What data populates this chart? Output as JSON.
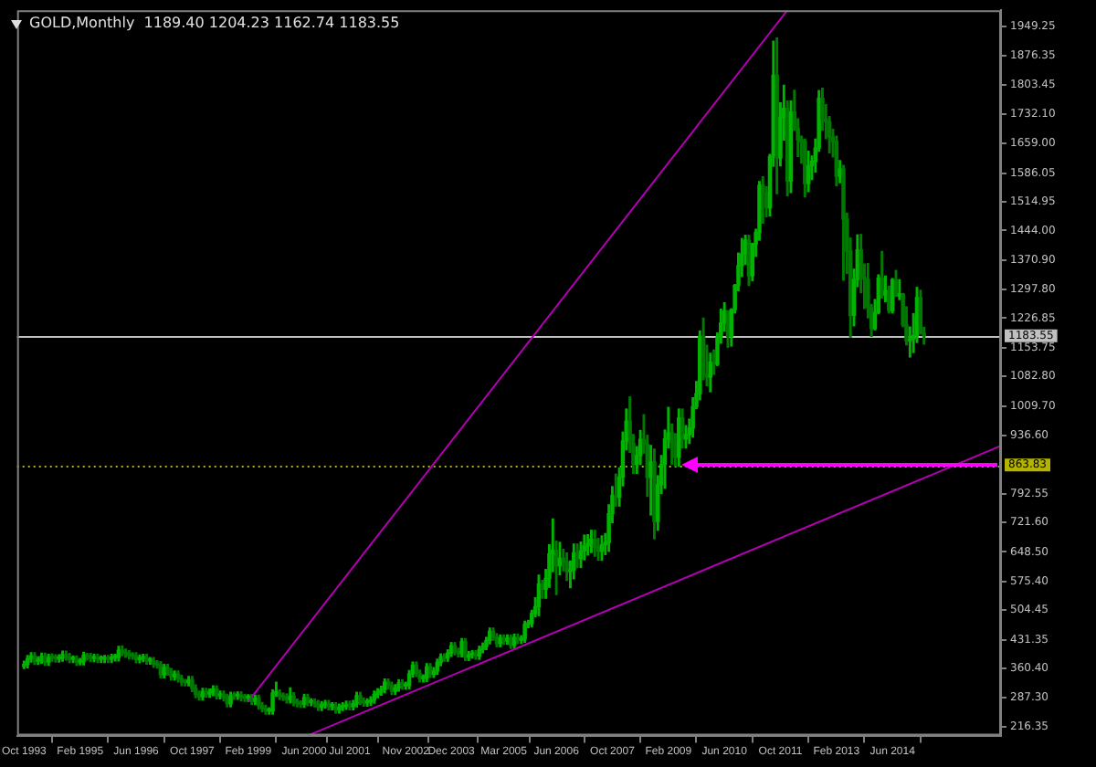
{
  "chart_data": {
    "type": "candlestick",
    "title": "GOLD,Monthly  1189.40 1204.23 1162.74 1183.55",
    "colors": [
      "#00b400",
      "#00b400",
      "#00b400",
      "#007a00",
      "#00b400",
      "#00b400",
      "#007a00",
      "#00b400",
      "#007a00",
      "#007a00",
      "#00b400",
      "#00b400",
      "#007a00",
      "#007a00",
      "#00b400",
      "#007a00",
      "#00b400",
      "#00b400",
      "#007a00",
      "#007a00",
      "#00b400",
      "#007a00",
      "#00b400",
      "#00b400",
      "#007a00",
      "#00b400",
      "#00b400",
      "#00b400",
      "#007a00",
      "#007a00",
      "#007a00",
      "#007a00",
      "#007a00",
      "#00b400",
      "#00b400",
      "#007a00",
      "#00b400",
      "#007a00",
      "#007a00",
      "#007a00",
      "#00b400",
      "#007a00",
      "#007a00",
      "#00b400",
      "#007a00",
      "#007a00",
      "#007a00",
      "#00b400",
      "#007a00",
      "#007a00",
      "#007a00",
      "#00b400",
      "#007a00",
      "#00b400",
      "#00b400",
      "#007a00",
      "#00b400",
      "#007a00",
      "#007a00",
      "#00b400",
      "#007a00",
      "#00b400",
      "#007a00",
      "#007a00",
      "#00b400",
      "#007a00",
      "#00b400",
      "#007a00",
      "#007a00",
      "#007a00",
      "#00b400",
      "#00b400",
      "#00b400",
      "#007a00",
      "#007a00",
      "#007a00",
      "#00b400",
      "#007a00",
      "#007a00",
      "#007a00",
      "#00b400",
      "#007a00",
      "#00b400",
      "#007a00",
      "#007a00",
      "#00b400",
      "#00b400",
      "#007a00",
      "#00b400",
      "#007a00",
      "#00b400",
      "#00b400",
      "#00b400",
      "#007a00",
      "#00b400",
      "#00b400",
      "#007a00",
      "#007a00",
      "#00b400",
      "#00b400",
      "#00b400",
      "#00b400",
      "#00b400",
      "#00b400",
      "#007a00",
      "#007a00",
      "#00b400",
      "#00b400",
      "#007a00",
      "#00b400",
      "#00b400",
      "#00b400",
      "#007a00",
      "#007a00",
      "#00b400",
      "#00b400",
      "#007a00",
      "#00b400",
      "#00b400",
      "#00b400",
      "#007a00",
      "#00b400",
      "#00b400",
      "#007a00",
      "#007a00",
      "#00b400",
      "#007a00",
      "#00b400",
      "#00b400",
      "#007a00",
      "#00b400",
      "#00b400",
      "#00b400",
      "#00b400",
      "#007a00",
      "#007a00",
      "#00b400",
      "#007a00",
      "#00b400",
      "#007a00",
      "#00b400",
      "#007a00",
      "#00b400",
      "#00b400",
      "#00b400",
      "#00b400",
      "#00b400",
      "#00b400",
      "#007a00",
      "#00b400",
      "#00b400",
      "#00b400",
      "#007a00",
      "#00b400",
      "#007a00",
      "#007a00",
      "#00b400",
      "#00b400",
      "#007a00",
      "#00b400",
      "#00b400",
      "#00b400",
      "#00b400",
      "#007a00",
      "#007a00",
      "#00b400",
      "#00b400",
      "#00b400",
      "#00b400",
      "#007a00",
      "#00b400",
      "#00b400",
      "#00b400",
      "#007a00",
      "#007a00",
      "#00b400",
      "#00b400",
      "#007a00",
      "#007a00",
      "#00b400",
      "#007a00",
      "#00b400",
      "#00b400",
      "#00b400",
      "#00b400",
      "#007a00",
      "#007a00",
      "#00b400",
      "#007a00",
      "#00b400",
      "#00b400",
      "#00b400",
      "#00b400",
      "#00b400",
      "#007a00",
      "#007a00",
      "#00b400",
      "#007a00",
      "#00b400",
      "#00b400",
      "#00b400",
      "#007a00",
      "#00b400",
      "#00b400",
      "#00b400",
      "#00b400",
      "#00b400",
      "#007a00",
      "#00b400",
      "#00b400",
      "#00b400",
      "#007a00",
      "#007a00",
      "#00b400",
      "#00b400",
      "#007a00",
      "#00b400",
      "#00b400",
      "#007a00",
      "#00b400",
      "#007a00",
      "#007a00",
      "#007a00",
      "#007a00",
      "#00b400",
      "#00b400",
      "#00b400",
      "#00b400",
      "#007a00",
      "#007a00",
      "#007a00",
      "#007a00",
      "#007a00",
      "#00b400",
      "#007a00",
      "#007a00",
      "#007a00",
      "#00b400",
      "#00b400",
      "#007a00",
      "#007a00",
      "#007a00",
      "#007a00",
      "#00b400",
      "#00b400",
      "#007a00",
      "#00b400",
      "#007a00",
      "#00b400",
      "#007a00",
      "#00b400",
      "#007a00",
      "#007a00",
      "#00b400",
      "#00b400",
      "#00b400",
      "#007a00",
      "#007a00"
    ],
    "x": [
      "1993-10",
      "1993-11",
      "1993-12",
      "1994-01",
      "1994-02",
      "1994-03",
      "1994-04",
      "1994-05",
      "1994-06",
      "1994-07",
      "1994-08",
      "1994-09",
      "1994-10",
      "1994-11",
      "1994-12",
      "1995-01",
      "1995-02",
      "1995-03",
      "1995-04",
      "1995-05",
      "1995-06",
      "1995-07",
      "1995-08",
      "1995-09",
      "1995-10",
      "1995-11",
      "1995-12",
      "1996-01",
      "1996-02",
      "1996-03",
      "1996-04",
      "1996-05",
      "1996-06",
      "1996-07",
      "1996-08",
      "1996-09",
      "1996-10",
      "1996-11",
      "1996-12",
      "1997-01",
      "1997-02",
      "1997-03",
      "1997-04",
      "1997-05",
      "1997-06",
      "1997-07",
      "1997-08",
      "1997-09",
      "1997-10",
      "1997-11",
      "1997-12",
      "1998-01",
      "1998-02",
      "1998-03",
      "1998-04",
      "1998-05",
      "1998-06",
      "1998-07",
      "1998-08",
      "1998-09",
      "1998-10",
      "1998-11",
      "1998-12",
      "1999-01",
      "1999-02",
      "1999-03",
      "1999-04",
      "1999-05",
      "1999-06",
      "1999-07",
      "1999-08",
      "1999-09",
      "1999-10",
      "1999-11",
      "1999-12",
      "2000-01",
      "2000-02",
      "2000-03",
      "2000-04",
      "2000-05",
      "2000-06",
      "2000-07",
      "2000-08",
      "2000-09",
      "2000-10",
      "2000-11",
      "2000-12",
      "2001-01",
      "2001-02",
      "2001-03",
      "2001-04",
      "2001-05",
      "2001-06",
      "2001-07",
      "2001-08",
      "2001-09",
      "2001-10",
      "2001-11",
      "2001-12",
      "2002-01",
      "2002-02",
      "2002-03",
      "2002-04",
      "2002-05",
      "2002-06",
      "2002-07",
      "2002-08",
      "2002-09",
      "2002-10",
      "2002-11",
      "2002-12",
      "2003-01",
      "2003-02",
      "2003-03",
      "2003-04",
      "2003-05",
      "2003-06",
      "2003-07",
      "2003-08",
      "2003-09",
      "2003-10",
      "2003-11",
      "2003-12",
      "2004-01",
      "2004-02",
      "2004-03",
      "2004-04",
      "2004-05",
      "2004-06",
      "2004-07",
      "2004-08",
      "2004-09",
      "2004-10",
      "2004-11",
      "2004-12",
      "2005-01",
      "2005-02",
      "2005-03",
      "2005-04",
      "2005-05",
      "2005-06",
      "2005-07",
      "2005-08",
      "2005-09",
      "2005-10",
      "2005-11",
      "2005-12",
      "2006-01",
      "2006-02",
      "2006-03",
      "2006-04",
      "2006-05",
      "2006-06",
      "2006-07",
      "2006-08",
      "2006-09",
      "2006-10",
      "2006-11",
      "2006-12",
      "2007-01",
      "2007-02",
      "2007-03",
      "2007-04",
      "2007-05",
      "2007-06",
      "2007-07",
      "2007-08",
      "2007-09",
      "2007-10",
      "2007-11",
      "2007-12",
      "2008-01",
      "2008-02",
      "2008-03",
      "2008-04",
      "2008-05",
      "2008-06",
      "2008-07",
      "2008-08",
      "2008-09",
      "2008-10",
      "2008-11",
      "2008-12",
      "2009-01",
      "2009-02",
      "2009-03",
      "2009-04",
      "2009-05",
      "2009-06",
      "2009-07",
      "2009-08",
      "2009-09",
      "2009-10",
      "2009-11",
      "2009-12",
      "2010-01",
      "2010-02",
      "2010-03",
      "2010-04",
      "2010-05",
      "2010-06",
      "2010-07",
      "2010-08",
      "2010-09",
      "2010-10",
      "2010-11",
      "2010-12",
      "2011-01",
      "2011-02",
      "2011-03",
      "2011-04",
      "2011-05",
      "2011-06",
      "2011-07",
      "2011-08",
      "2011-09",
      "2011-10",
      "2011-11",
      "2011-12",
      "2012-01",
      "2012-02",
      "2012-03",
      "2012-04",
      "2012-05",
      "2012-06",
      "2012-07",
      "2012-08",
      "2012-09",
      "2012-10",
      "2012-11",
      "2012-12",
      "2013-01",
      "2013-02",
      "2013-03",
      "2013-04",
      "2013-05",
      "2013-06",
      "2013-07",
      "2013-08",
      "2013-09",
      "2013-10",
      "2013-11",
      "2013-12",
      "2014-01",
      "2014-02",
      "2014-03",
      "2014-04",
      "2014-05",
      "2014-06",
      "2014-07",
      "2014-08",
      "2014-09",
      "2014-10",
      "2014-11",
      "2014-12",
      "2015-01",
      "2015-02",
      "2015-03"
    ],
    "ohlc": [
      [
        365,
        378,
        360,
        370
      ],
      [
        370,
        392,
        362,
        384
      ],
      [
        384,
        399,
        376,
        391
      ],
      [
        391,
        399,
        370,
        378
      ],
      [
        378,
        389,
        370,
        381
      ],
      [
        381,
        398,
        373,
        390
      ],
      [
        390,
        398,
        368,
        376
      ],
      [
        376,
        395,
        368,
        387
      ],
      [
        387,
        396,
        378,
        386
      ],
      [
        386,
        394,
        376,
        384
      ],
      [
        384,
        394,
        376,
        386
      ],
      [
        386,
        403,
        378,
        395
      ],
      [
        395,
        403,
        381,
        389
      ],
      [
        389,
        397,
        375,
        383
      ],
      [
        383,
        391,
        375,
        383
      ],
      [
        383,
        391,
        368,
        376
      ],
      [
        376,
        385,
        369,
        377
      ],
      [
        377,
        400,
        369,
        392
      ],
      [
        392,
        397,
        381,
        389
      ],
      [
        389,
        397,
        377,
        385
      ],
      [
        385,
        395,
        377,
        387
      ],
      [
        387,
        395,
        375,
        383
      ],
      [
        383,
        391,
        375,
        383
      ],
      [
        383,
        392,
        375,
        384
      ],
      [
        384,
        392,
        375,
        383
      ],
      [
        383,
        395,
        375,
        387
      ],
      [
        387,
        395,
        379,
        387
      ],
      [
        387,
        415,
        379,
        405
      ],
      [
        405,
        416,
        392,
        400
      ],
      [
        400,
        408,
        388,
        396
      ],
      [
        396,
        404,
        384,
        392
      ],
      [
        392,
        399,
        383,
        391
      ],
      [
        391,
        399,
        374,
        382
      ],
      [
        382,
        393,
        374,
        385
      ],
      [
        385,
        395,
        377,
        387
      ],
      [
        387,
        395,
        371,
        379
      ],
      [
        379,
        387,
        371,
        379
      ],
      [
        379,
        387,
        363,
        371
      ],
      [
        371,
        379,
        361,
        369
      ],
      [
        369,
        377,
        337,
        345
      ],
      [
        345,
        370,
        337,
        362
      ],
      [
        362,
        370,
        344,
        352
      ],
      [
        352,
        360,
        332,
        340
      ],
      [
        340,
        354,
        332,
        346
      ],
      [
        346,
        354,
        327,
        335
      ],
      [
        335,
        343,
        318,
        326
      ],
      [
        326,
        333,
        317,
        325
      ],
      [
        325,
        340,
        317,
        332
      ],
      [
        332,
        340,
        303,
        311
      ],
      [
        311,
        319,
        288,
        296
      ],
      [
        296,
        304,
        282,
        290
      ],
      [
        290,
        311,
        282,
        303
      ],
      [
        303,
        311,
        289,
        297
      ],
      [
        297,
        309,
        289,
        301
      ],
      [
        301,
        317,
        293,
        309
      ],
      [
        309,
        317,
        285,
        293
      ],
      [
        293,
        304,
        285,
        296
      ],
      [
        296,
        304,
        280,
        288
      ],
      [
        288,
        296,
        265,
        273
      ],
      [
        273,
        301,
        265,
        293
      ],
      [
        293,
        301,
        284,
        292
      ],
      [
        292,
        302,
        284,
        294
      ],
      [
        294,
        302,
        280,
        288
      ],
      [
        288,
        296,
        279,
        287
      ],
      [
        287,
        295,
        279,
        287
      ],
      [
        287,
        295,
        271,
        279
      ],
      [
        279,
        294,
        271,
        286
      ],
      [
        286,
        294,
        260,
        268
      ],
      [
        268,
        276,
        253,
        261
      ],
      [
        261,
        269,
        247,
        255
      ],
      [
        255,
        263,
        247,
        255
      ],
      [
        255,
        307,
        247,
        299
      ],
      [
        299,
        326,
        291,
        299
      ],
      [
        299,
        307,
        283,
        291
      ],
      [
        291,
        299,
        281,
        289
      ],
      [
        289,
        297,
        275,
        283
      ],
      [
        283,
        312,
        275,
        292
      ],
      [
        292,
        300,
        268,
        276
      ],
      [
        276,
        284,
        265,
        273
      ],
      [
        273,
        280,
        264,
        272
      ],
      [
        272,
        296,
        264,
        288
      ],
      [
        288,
        296,
        268,
        276
      ],
      [
        276,
        285,
        268,
        277
      ],
      [
        277,
        285,
        265,
        273
      ],
      [
        273,
        281,
        256,
        264
      ],
      [
        264,
        278,
        256,
        270
      ],
      [
        270,
        281,
        262,
        273
      ],
      [
        273,
        281,
        258,
        266
      ],
      [
        266,
        275,
        258,
        267
      ],
      [
        267,
        275,
        250,
        258
      ],
      [
        258,
        272,
        250,
        264
      ],
      [
        264,
        275,
        256,
        267
      ],
      [
        267,
        279,
        259,
        271
      ],
      [
        271,
        279,
        258,
        266
      ],
      [
        266,
        281,
        258,
        273
      ],
      [
        273,
        301,
        265,
        293
      ],
      [
        293,
        301,
        271,
        279
      ],
      [
        279,
        287,
        267,
        275
      ],
      [
        275,
        285,
        267,
        277
      ],
      [
        277,
        290,
        269,
        282
      ],
      [
        282,
        304,
        274,
        296
      ],
      [
        296,
        310,
        288,
        302
      ],
      [
        302,
        316,
        294,
        308
      ],
      [
        308,
        334,
        300,
        326
      ],
      [
        326,
        334,
        310,
        318
      ],
      [
        318,
        326,
        296,
        304
      ],
      [
        304,
        320,
        296,
        312
      ],
      [
        312,
        332,
        304,
        324
      ],
      [
        324,
        332,
        309,
        317
      ],
      [
        317,
        326,
        309,
        318
      ],
      [
        318,
        355,
        310,
        347
      ],
      [
        347,
        376,
        339,
        368
      ],
      [
        368,
        376,
        340,
        348
      ],
      [
        348,
        356,
        327,
        335
      ],
      [
        335,
        344,
        327,
        336
      ],
      [
        336,
        372,
        328,
        364
      ],
      [
        364,
        372,
        338,
        346
      ],
      [
        346,
        362,
        338,
        354
      ],
      [
        354,
        383,
        346,
        375
      ],
      [
        375,
        396,
        367,
        388
      ],
      [
        388,
        396,
        378,
        386
      ],
      [
        386,
        406,
        378,
        398
      ],
      [
        398,
        424,
        390,
        416
      ],
      [
        416,
        424,
        394,
        402
      ],
      [
        402,
        410,
        389,
        397
      ],
      [
        397,
        434,
        389,
        426
      ],
      [
        426,
        434,
        380,
        388
      ],
      [
        388,
        402,
        380,
        394
      ],
      [
        394,
        404,
        386,
        396
      ],
      [
        396,
        404,
        383,
        391
      ],
      [
        391,
        415,
        383,
        407
      ],
      [
        407,
        423,
        399,
        415
      ],
      [
        415,
        437,
        407,
        429
      ],
      [
        429,
        460,
        421,
        452
      ],
      [
        452,
        460,
        430,
        438
      ],
      [
        438,
        446,
        414,
        422
      ],
      [
        422,
        443,
        414,
        435
      ],
      [
        435,
        443,
        420,
        428
      ],
      [
        428,
        443,
        420,
        435
      ],
      [
        435,
        443,
        410,
        418
      ],
      [
        418,
        445,
        410,
        437
      ],
      [
        437,
        445,
        422,
        430
      ],
      [
        430,
        441,
        422,
        433
      ],
      [
        433,
        477,
        425,
        469
      ],
      [
        469,
        479,
        461,
        471
      ],
      [
        471,
        504,
        463,
        496
      ],
      [
        496,
        535,
        488,
        513
      ],
      [
        513,
        591,
        491,
        569
      ],
      [
        569,
        578,
        534,
        556
      ],
      [
        556,
        605,
        534,
        583
      ],
      [
        583,
        666,
        561,
        644
      ],
      [
        644,
        730,
        600,
        653
      ],
      [
        653,
        675,
        543,
        614
      ],
      [
        614,
        672,
        592,
        633
      ],
      [
        633,
        655,
        602,
        624
      ],
      [
        624,
        646,
        578,
        600
      ],
      [
        600,
        626,
        560,
        604
      ],
      [
        604,
        668,
        582,
        646
      ],
      [
        646,
        668,
        610,
        632
      ],
      [
        632,
        673,
        610,
        651
      ],
      [
        651,
        690,
        629,
        663
      ],
      [
        663,
        691,
        641,
        669
      ],
      [
        669,
        702,
        647,
        680
      ],
      [
        680,
        702,
        638,
        660
      ],
      [
        660,
        682,
        628,
        650
      ],
      [
        650,
        688,
        628,
        666
      ],
      [
        666,
        694,
        642,
        672
      ],
      [
        672,
        765,
        650,
        743
      ],
      [
        743,
        810,
        721,
        788
      ],
      [
        788,
        841,
        762,
        784
      ],
      [
        784,
        856,
        762,
        834
      ],
      [
        834,
        945,
        812,
        923
      ],
      [
        923,
        1002,
        901,
        972
      ],
      [
        972,
        1032,
        895,
        917
      ],
      [
        917,
        939,
        843,
        865
      ],
      [
        865,
        909,
        843,
        887
      ],
      [
        887,
        949,
        865,
        927
      ],
      [
        927,
        988,
        893,
        915
      ],
      [
        915,
        937,
        786,
        833
      ],
      [
        833,
        912,
        740,
        871
      ],
      [
        871,
        903,
        681,
        724
      ],
      [
        724,
        837,
        702,
        815
      ],
      [
        815,
        887,
        793,
        865
      ],
      [
        865,
        950,
        806,
        928
      ],
      [
        928,
        1006,
        906,
        943
      ],
      [
        943,
        965,
        866,
        919
      ],
      [
        919,
        941,
        861,
        883
      ],
      [
        883,
        1002,
        861,
        980
      ],
      [
        980,
        1002,
        906,
        928
      ],
      [
        928,
        961,
        906,
        939
      ],
      [
        939,
        977,
        917,
        955
      ],
      [
        955,
        1030,
        933,
        1008
      ],
      [
        1008,
        1070,
        1003,
        1040
      ],
      [
        1040,
        1195,
        1025,
        1182
      ],
      [
        1182,
        1227,
        1075,
        1088
      ],
      [
        1088,
        1160,
        1060,
        1081
      ],
      [
        1081,
        1140,
        1045,
        1118
      ],
      [
        1118,
        1148,
        1088,
        1113
      ],
      [
        1113,
        1190,
        1110,
        1180
      ],
      [
        1180,
        1249,
        1165,
        1215
      ],
      [
        1215,
        1265,
        1195,
        1245
      ],
      [
        1245,
        1245,
        1155,
        1182
      ],
      [
        1182,
        1250,
        1158,
        1248
      ],
      [
        1248,
        1310,
        1240,
        1308
      ],
      [
        1308,
        1388,
        1295,
        1357
      ],
      [
        1357,
        1424,
        1330,
        1386
      ],
      [
        1386,
        1432,
        1360,
        1420
      ],
      [
        1420,
        1432,
        1308,
        1332
      ],
      [
        1332,
        1412,
        1320,
        1411
      ],
      [
        1411,
        1447,
        1380,
        1439
      ],
      [
        1439,
        1565,
        1420,
        1556
      ],
      [
        1556,
        1577,
        1462,
        1536
      ],
      [
        1536,
        1552,
        1478,
        1500
      ],
      [
        1500,
        1632,
        1480,
        1627
      ],
      [
        1627,
        1912,
        1603,
        1828
      ],
      [
        1828,
        1920,
        1535,
        1623
      ],
      [
        1623,
        1760,
        1604,
        1724
      ],
      [
        1724,
        1803,
        1668,
        1746
      ],
      [
        1746,
        1764,
        1530,
        1566
      ],
      [
        1566,
        1764,
        1538,
        1737
      ],
      [
        1737,
        1791,
        1692,
        1697
      ],
      [
        1697,
        1720,
        1627,
        1668
      ],
      [
        1668,
        1677,
        1611,
        1664
      ],
      [
        1664,
        1670,
        1527,
        1560
      ],
      [
        1560,
        1640,
        1540,
        1604
      ],
      [
        1604,
        1628,
        1570,
        1615
      ],
      [
        1615,
        1670,
        1589,
        1648
      ],
      [
        1648,
        1790,
        1640,
        1771
      ],
      [
        1771,
        1796,
        1692,
        1719
      ],
      [
        1719,
        1755,
        1671,
        1713
      ],
      [
        1713,
        1726,
        1636,
        1675
      ],
      [
        1675,
        1694,
        1626,
        1664
      ],
      [
        1664,
        1677,
        1555,
        1578
      ],
      [
        1578,
        1617,
        1562,
        1596
      ],
      [
        1596,
        1605,
        1321,
        1472
      ],
      [
        1472,
        1487,
        1338,
        1393
      ],
      [
        1393,
        1425,
        1180,
        1234
      ],
      [
        1234,
        1348,
        1208,
        1323
      ],
      [
        1323,
        1433,
        1305,
        1396
      ],
      [
        1396,
        1434,
        1290,
        1327
      ],
      [
        1327,
        1361,
        1251,
        1323
      ],
      [
        1323,
        1362,
        1228,
        1253
      ],
      [
        1253,
        1261,
        1182,
        1201
      ],
      [
        1201,
        1273,
        1198,
        1241
      ],
      [
        1241,
        1334,
        1238,
        1326
      ],
      [
        1326,
        1392,
        1277,
        1284
      ],
      [
        1284,
        1331,
        1268,
        1295
      ],
      [
        1295,
        1306,
        1240,
        1246
      ],
      [
        1246,
        1325,
        1240,
        1322
      ],
      [
        1322,
        1345,
        1281,
        1282
      ],
      [
        1282,
        1322,
        1273,
        1287
      ],
      [
        1287,
        1288,
        1206,
        1210
      ],
      [
        1210,
        1255,
        1161,
        1171
      ],
      [
        1171,
        1205,
        1131,
        1175
      ],
      [
        1175,
        1238,
        1142,
        1184
      ],
      [
        1184,
        1303,
        1167,
        1278
      ],
      [
        1278,
        1296,
        1188,
        1190
      ],
      [
        1189.4,
        1204.23,
        1162.74,
        1183.55
      ]
    ],
    "series": [
      {
        "type": "line",
        "x": [
          "1999-02",
          "2011-12"
        ],
        "values": [
          278,
          1989
        ],
        "color": "#b000b0"
      },
      {
        "type": "line",
        "x": [
          "2000-07",
          "2017-01"
        ],
        "values": [
          194,
          911
        ],
        "color": "#b000b0"
      }
    ],
    "xlim": [
      "1993-08",
      "2017-01"
    ],
    "xticks": [
      {
        "value": "1993-10",
        "label": "Oct 1993"
      },
      {
        "value": "1995-02",
        "label": "Feb 1995"
      },
      {
        "value": "1996-06",
        "label": "Jun 1996"
      },
      {
        "value": "1997-10",
        "label": "Oct 1997"
      },
      {
        "value": "1999-02",
        "label": "Feb 1999"
      },
      {
        "value": "2000-06",
        "label": "Jun 2000"
      },
      {
        "value": "2001-07",
        "label": "Jul 2001"
      },
      {
        "value": "2002-11",
        "label": "Nov 2002"
      },
      {
        "value": "2003-12",
        "label": "Dec 2003"
      },
      {
        "value": "2005-03",
        "label": "Mar 2005"
      },
      {
        "value": "2006-06",
        "label": "Jun 2006"
      },
      {
        "value": "2007-10",
        "label": "Oct 2007"
      },
      {
        "value": "2009-02",
        "label": "Feb 2009"
      },
      {
        "value": "2010-06",
        "label": "Jun 2010"
      },
      {
        "value": "2011-10",
        "label": "Oct 2011"
      },
      {
        "value": "2013-02",
        "label": "Feb 2013"
      },
      {
        "value": "2014-06",
        "label": "Jun 2014"
      }
    ],
    "ylim": [
      194,
      1989
    ],
    "yticks": [
      216.35,
      {
        "value": 287.3,
        "label": "287.30"
      },
      {
        "value": 360.4,
        "label": "360.40"
      },
      431.35,
      504.45,
      {
        "value": 575.4,
        "label": "575.40"
      },
      {
        "value": 648.5,
        "label": "648.50"
      },
      {
        "value": 721.6,
        "label": "721.60"
      },
      792.55,
      {
        "value": 936.6,
        "label": "936.60"
      },
      {
        "value": 1009.7,
        "label": "1009.70"
      },
      {
        "value": 1082.8,
        "label": "1082.80"
      },
      1153.75,
      1226.85,
      {
        "value": 1297.8,
        "label": "1297.80"
      },
      {
        "value": 1370.9,
        "label": "1370.90"
      },
      {
        "value": 1444,
        "label": "1444.00"
      },
      1514.95,
      1586.05,
      {
        "value": 1659,
        "label": "1659.00"
      },
      {
        "value": 1732.1,
        "label": "1732.10"
      },
      1803.45,
      1876.35,
      1949.25
    ],
    "ref_lines": [
      {
        "axis": "y",
        "value": 1183.55,
        "label": "1183.55",
        "color": "#c0c0c0",
        "line_style": "solid"
      },
      {
        "axis": "y",
        "value": 863.83,
        "label": "863.83",
        "color": "#b4b400",
        "line_style": "dotted"
      }
    ],
    "grid": false,
    "legend": false
  }
}
